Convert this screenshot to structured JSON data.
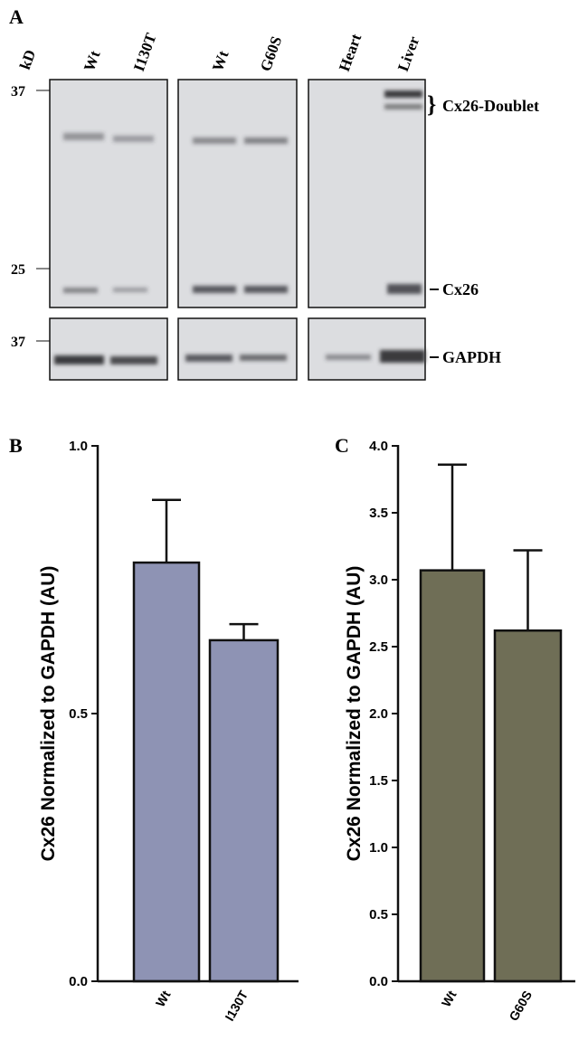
{
  "blot": {
    "panel_label": "A",
    "unit": "kD",
    "lanes": [
      "Wt",
      "I130T",
      "Wt",
      "G60S",
      "Heart",
      "Liver"
    ],
    "markers": [
      "37",
      "25",
      "37"
    ],
    "bands": [
      "Cx26-Doublet",
      "Cx26",
      "GAPDH"
    ]
  },
  "chart_data": [
    {
      "type": "bar",
      "panel_label": "B",
      "y_label": "Cx26 Normalized to GAPDH (AU)",
      "categories": [
        "Wt",
        "I130T"
      ],
      "values": [
        0.782,
        0.637
      ],
      "errors": [
        0.117,
        0.03
      ],
      "color": "#8e93b4",
      "ylim": [
        0,
        1
      ],
      "yticks": [
        {
          "value": 0,
          "label": "0.0"
        },
        0.5,
        {
          "value": 1,
          "label": "1.0"
        }
      ]
    },
    {
      "type": "bar",
      "panel_label": "C",
      "y_label": "Cx26 Normalized to GAPDH (AU)",
      "categories": [
        "Wt",
        "G60S"
      ],
      "values": [
        3.07,
        2.62
      ],
      "errors": [
        0.79,
        0.6
      ],
      "color": "#6f6e56",
      "ylim": [
        0,
        4
      ],
      "yticks": [
        {
          "value": 0,
          "label": "0.0"
        },
        0.5,
        {
          "value": 1,
          "label": "1.0"
        },
        1.5,
        {
          "value": 2,
          "label": "2.0"
        },
        2.5,
        {
          "value": 3,
          "label": "3.0"
        },
        3.5,
        {
          "value": 4,
          "label": "4.0"
        }
      ]
    }
  ]
}
